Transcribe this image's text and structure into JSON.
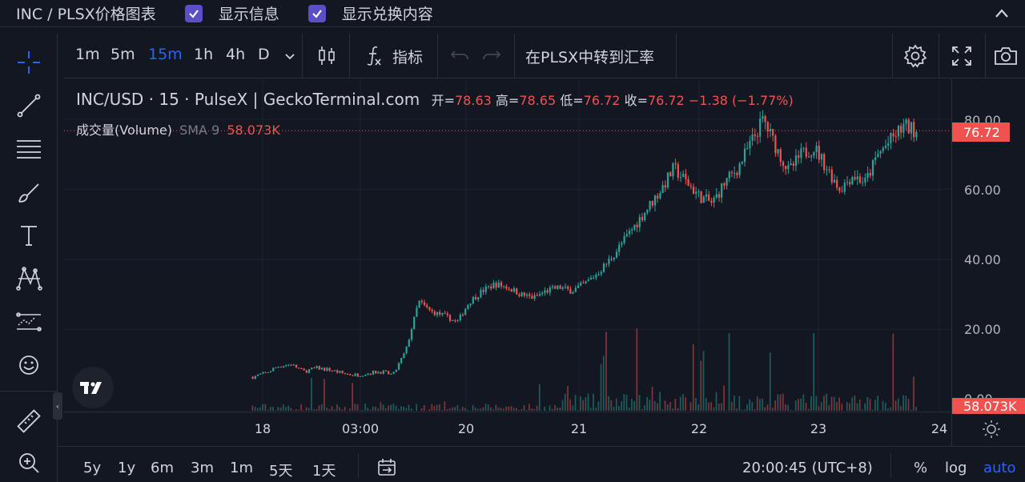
{
  "header": {
    "title": "INC / PLSX价格图表",
    "checkbox1_label": "显示信息",
    "checkbox1_checked": true,
    "checkbox2_label": "显示兑换内容",
    "checkbox2_checked": true,
    "collapse_icon": "chevron-up-icon"
  },
  "left_tools": [
    "crosshair-icon",
    "trend-line-icon",
    "fib-lines-icon",
    "brush-icon",
    "text-icon",
    "pattern-icon",
    "forecast-icon",
    "emoji-icon",
    "ruler-icon",
    "zoom-in-icon"
  ],
  "toolbar": {
    "intervals": [
      "1m",
      "5m",
      "15m",
      "1h",
      "4h",
      "D"
    ],
    "active_interval": "15m",
    "indicators_label": "指标",
    "convert_label": "在PLSX中转到汇率"
  },
  "legend": {
    "symbol": "INC/USD · 15 · PulseX | GeckoTerminal.com",
    "open_key": "开=",
    "open": "78.63",
    "high_key": "高=",
    "high": "78.65",
    "low_key": "低=",
    "low": "76.72",
    "close_key": "收=",
    "close": "76.72",
    "change": "−1.38 (−1.77%)",
    "volume_label": "成交量(Volume)",
    "sma_label": "SMA 9",
    "volume_value": "58.073K"
  },
  "price_scale": {
    "ticks": [
      "80.00",
      "60.00",
      "40.00",
      "20.00",
      "0.00"
    ],
    "last_price": "76.72",
    "last_volume": "58.073K"
  },
  "time_axis": {
    "ticks": [
      "18",
      "03:00",
      "20",
      "21",
      "22",
      "23",
      "24"
    ]
  },
  "bottom": {
    "ranges": [
      "5y",
      "1y",
      "6m",
      "3m",
      "1m",
      "5天",
      "1天"
    ],
    "clock": "20:00:45 (UTC+8)",
    "percent": "%",
    "log": "log",
    "auto": "auto"
  },
  "colors": {
    "up": "#26a69a",
    "down": "#ef5350",
    "accent": "#2962ff",
    "checkbox": "#5b4fc7"
  },
  "chart_data": {
    "type": "candlestick",
    "pair": "INC/USD",
    "interval": "15",
    "ylim": [
      0,
      85
    ],
    "x": [
      "18",
      "03:00",
      "20",
      "21",
      "22",
      "23",
      "24"
    ],
    "close_series": [
      6.5,
      7.5,
      9.5,
      10,
      8,
      9,
      8.5,
      7.5,
      7,
      7.5,
      8,
      7,
      14,
      28,
      25,
      24,
      22,
      28,
      31,
      33,
      32,
      30,
      29,
      31,
      32,
      31,
      33,
      36,
      40,
      45,
      50,
      55,
      60,
      66,
      62,
      58,
      56,
      62,
      66,
      73,
      80,
      72,
      65,
      70,
      72,
      66,
      60,
      64,
      62,
      70,
      74,
      78,
      76.72
    ]
  }
}
